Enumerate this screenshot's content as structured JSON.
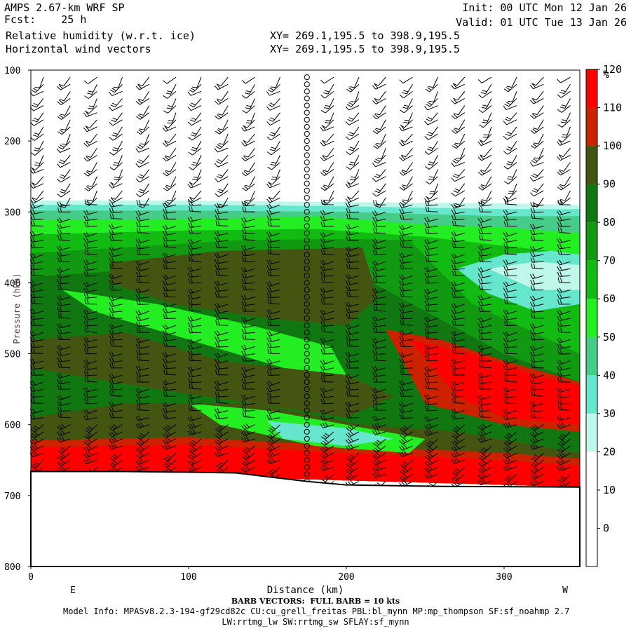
{
  "header": {
    "model": "AMPS 2.67-km WRF SP",
    "fcst_label": "Fcst:",
    "fcst_value": "25 h",
    "field1": "Relative humidity (w.r.t. ice)",
    "field2": "Horizontal wind vectors",
    "init": "Init: 00 UTC Mon 12 Jan 26",
    "valid": "Valid: 01 UTC Tue 13 Jan 26",
    "xy1": "XY= 269.1,195.5 to 398.9,195.5",
    "xy2": "XY= 269.1,195.5 to 398.9,195.5"
  },
  "footer": {
    "barb_note": "BARB VECTORS:  FULL BARB = 10 kts",
    "model_info": "Model Info: MPASv8.2.3-194-gf29cd82c CU:cu_grell_freitas PBL:bl_mynn MP:mp_thompson SF:sf_noahmp 2.7",
    "model_info2": "LW:rrtmg_lw SW:rrtmg_sw SFLAY:sf_mynn"
  },
  "chart_data": {
    "type": "heatmap",
    "title": "Relative humidity (w.r.t. ice)",
    "xlabel": "Distance (km)",
    "ylabel": "Pressure (hPa)",
    "xlim": [
      0,
      348
    ],
    "ylim": [
      800,
      100
    ],
    "x_ticks": [
      0,
      100,
      200,
      300
    ],
    "y_ticks": [
      100,
      200,
      300,
      400,
      500,
      600,
      700,
      800
    ],
    "x_end_labels": {
      "left": "E",
      "right": "W"
    },
    "terrain_surface_hpa": {
      "x": [
        0,
        60,
        130,
        175,
        200,
        260,
        348
      ],
      "p": [
        666,
        666,
        668,
        680,
        685,
        687,
        688
      ]
    },
    "colorbar": {
      "unit": "%",
      "levels": [
        0,
        10,
        20,
        30,
        40,
        50,
        60,
        70,
        80,
        90,
        100,
        110,
        120
      ],
      "colors": [
        "#ffffff",
        "#ffffff",
        "#ffffff",
        "#bff8ea",
        "#66e6cc",
        "#44cc88",
        "#22ee22",
        "#11bb11",
        "#119911",
        "#117711",
        "#445511",
        "#cc2200",
        "#ff0000"
      ]
    },
    "rh_bands": [
      {
        "label": "30-40",
        "color": "#bff8ea",
        "top": {
          "x": [
            0,
            100,
            200,
            300,
            348
          ],
          "p": [
            284,
            284,
            286,
            288,
            290
          ]
        },
        "bottom": {
          "x": [
            0,
            348
          ],
          "p": [
            666,
            688
          ]
        }
      },
      {
        "label": "40-50",
        "color": "#66e6cc",
        "top": {
          "x": [
            0,
            100,
            200,
            300,
            348
          ],
          "p": [
            290,
            290,
            292,
            296,
            296
          ]
        },
        "bottom": {
          "x": [
            0,
            348
          ],
          "p": [
            666,
            688
          ]
        }
      },
      {
        "label": "50-60",
        "color": "#44cc88",
        "top": {
          "x": [
            0,
            100,
            200,
            300,
            348
          ],
          "p": [
            298,
            298,
            300,
            306,
            306
          ]
        },
        "bottom": {
          "x": [
            0,
            348
          ],
          "p": [
            666,
            688
          ]
        }
      },
      {
        "label": "60-70",
        "color": "#22ee22",
        "top": {
          "x": [
            0,
            100,
            180,
            250,
            300,
            348
          ],
          "p": [
            312,
            310,
            306,
            318,
            322,
            330
          ]
        },
        "bottom": {
          "x": [
            0,
            348
          ],
          "p": [
            666,
            688
          ]
        }
      },
      {
        "label": "70-80",
        "color": "#11bb11",
        "top": {
          "x": [
            0,
            100,
            180,
            250,
            348
          ],
          "p": [
            332,
            326,
            324,
            335,
            360
          ]
        },
        "bottom": {
          "x": [
            0,
            348
          ],
          "p": [
            666,
            688
          ]
        }
      },
      {
        "label": "80-90",
        "color": "#119911",
        "top": {
          "x": [
            0,
            60,
            130,
            200,
            240,
            280,
            348
          ],
          "p": [
            358,
            350,
            340,
            338,
            340,
            430,
            500
          ]
        },
        "bottom": {
          "x": [
            0,
            348
          ],
          "p": [
            666,
            688
          ]
        }
      },
      {
        "label": "90-100",
        "color": "#117711",
        "top": {
          "x": [
            0,
            60,
            140,
            200,
            250,
            300,
            348
          ],
          "p": [
            392,
            382,
            372,
            380,
            440,
            500,
            540
          ]
        },
        "bottom": {
          "x": [
            0,
            348
          ],
          "p": [
            666,
            688
          ]
        }
      },
      {
        "label": "100-110",
        "color": "#445511",
        "top": {
          "x": [
            0,
            60,
            140,
            210,
            270,
            348
          ],
          "p": [
            590,
            570,
            570,
            600,
            610,
            640
          ]
        },
        "bottom": {
          "x": [
            0,
            348
          ],
          "p": [
            666,
            688
          ]
        }
      },
      {
        "label": "110-120",
        "color": "#cc2200",
        "top": {
          "x": [
            0,
            100,
            200,
            300,
            348
          ],
          "p": [
            622,
            618,
            630,
            640,
            648
          ]
        },
        "bottom": {
          "x": [
            0,
            348
          ],
          "p": [
            666,
            688
          ]
        }
      },
      {
        "label": ">120",
        "color": "#ff0000",
        "top": {
          "x": [
            0,
            100,
            200,
            300,
            348
          ],
          "p": [
            632,
            628,
            640,
            650,
            658
          ]
        },
        "bottom": {
          "x": [
            0,
            348
          ],
          "p": [
            666,
            688
          ]
        }
      }
    ],
    "rh_patches": [
      {
        "label": "upper-dry-pocket",
        "color": "#66e6cc",
        "x": [
          270,
          300,
          330,
          348,
          348,
          320,
          290
        ],
        "p": [
          380,
          360,
          355,
          360,
          430,
          440,
          415
        ]
      },
      {
        "label": "upper-dry-core",
        "color": "#bff8ea",
        "x": [
          290,
          320,
          348,
          348,
          320
        ],
        "p": [
          380,
          370,
          375,
          410,
          410
        ]
      },
      {
        "label": "moist-core-mid",
        "color": "#445511",
        "x": [
          50,
          120,
          180,
          210,
          220,
          200,
          150,
          90,
          50
        ],
        "p": [
          372,
          355,
          352,
          350,
          420,
          460,
          450,
          430,
          400
        ]
      },
      {
        "label": "dry-tongue",
        "color": "#22ee22",
        "x": [
          20,
          80,
          140,
          190,
          200,
          160,
          100,
          40
        ],
        "p": [
          410,
          430,
          460,
          490,
          530,
          520,
          480,
          440
        ]
      },
      {
        "label": "moist-lower-core",
        "color": "#445511",
        "x": [
          0,
          60,
          120,
          160,
          200,
          230,
          200,
          140,
          80,
          0
        ],
        "p": [
          480,
          470,
          510,
          520,
          530,
          560,
          590,
          570,
          550,
          520
        ]
      },
      {
        "label": "red-lower",
        "color": "#cc2200",
        "x": [
          225,
          260,
          300,
          348,
          348,
          300,
          250
        ],
        "p": [
          466,
          480,
          510,
          540,
          610,
          600,
          570
        ]
      },
      {
        "label": "red-core",
        "color": "#ff0000",
        "x": [
          240,
          280,
          320,
          348,
          348,
          300,
          270
        ],
        "p": [
          480,
          500,
          530,
          545,
          600,
          590,
          560
        ]
      },
      {
        "label": "dry-band-low",
        "color": "#22ee22",
        "x": [
          100,
          150,
          200,
          250,
          240,
          180,
          120
        ],
        "p": [
          570,
          580,
          600,
          620,
          640,
          630,
          600
        ]
      },
      {
        "label": "dry-band-core",
        "color": "#66e6cc",
        "x": [
          150,
          200,
          230,
          200,
          160
        ],
        "p": [
          595,
          605,
          620,
          630,
          620
        ]
      }
    ],
    "wind_barb_columns_km": [
      8,
      25,
      42,
      58,
      75,
      92,
      108,
      125,
      142,
      158,
      175,
      192,
      208,
      225,
      242,
      258,
      275,
      292,
      308,
      325,
      342
    ],
    "calm_column_km": 175
  }
}
